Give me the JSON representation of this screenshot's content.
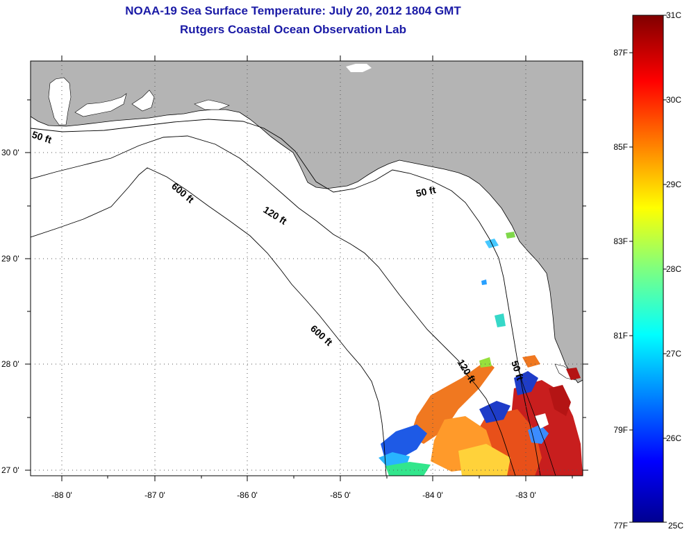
{
  "title_line1": "NOAA-19 Sea Surface Temperature:  July 20, 2012 1804 GMT",
  "title_line2": "Rutgers Coastal Ocean Observation Lab",
  "map": {
    "lon_ticks": [
      "-88 0'",
      "-87 0'",
      "-86 0'",
      "-85 0'",
      "-84 0'",
      "-83 0'"
    ],
    "lat_ticks": [
      "30 0'",
      "29 0'",
      "28 0'",
      "27 0'"
    ],
    "contour_labels": [
      {
        "text": "50 ft"
      },
      {
        "text": "50 ft"
      },
      {
        "text": "50 ft"
      },
      {
        "text": "120 ft"
      },
      {
        "text": "120 ft"
      },
      {
        "text": "600 ft"
      },
      {
        "text": "600 ft"
      }
    ]
  },
  "colorbar": {
    "celsius": [
      "31C",
      "30C",
      "29C",
      "28C",
      "27C",
      "26C",
      "25C"
    ],
    "fahrenheit": [
      "87F",
      "85F",
      "83F",
      "81F",
      "79F",
      "77F"
    ]
  },
  "colors": {
    "title": "#1a1aa6",
    "land": "#b4b4b4",
    "ocean": "#ffffff"
  }
}
